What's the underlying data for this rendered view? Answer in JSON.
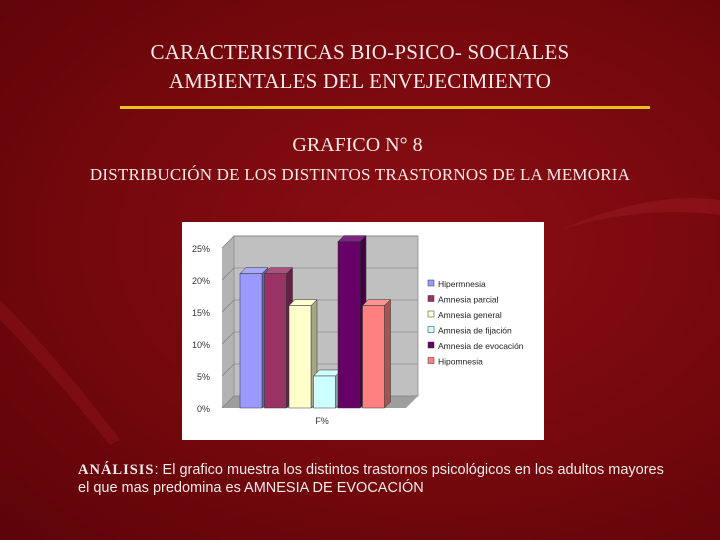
{
  "slide": {
    "title_line1": "CARACTERISTICAS BIO-PSICO- SOCIALES",
    "title_line2": "AMBIENTALES DEL ENVEJECIMIENTO",
    "subtitle": "GRAFICO N° 8",
    "heading": "DISTRIBUCIÓN DE LOS DISTINTOS TRASTORNOS DE LA MEMORIA",
    "analysis_label": "ANÁLISIS",
    "analysis_text": ": El grafico muestra los distintos trastornos psicológicos en los adultos mayores el que mas predomina es AMNESIA DE EVOCACIÓN"
  },
  "colors": {
    "background": "#74080d",
    "rule": "#e6c21a",
    "text": "#f4e9e9"
  },
  "chart_data": {
    "type": "bar",
    "categories": [
      "F%"
    ],
    "series": [
      {
        "name": "Hipermnesia",
        "values": [
          21
        ],
        "color": "#9999ff"
      },
      {
        "name": "Amnesia parcial",
        "values": [
          21
        ],
        "color": "#993366"
      },
      {
        "name": "Amnesia general",
        "values": [
          16
        ],
        "color": "#ffffcc"
      },
      {
        "name": "Amnesia de fijación",
        "values": [
          5
        ],
        "color": "#ccffff"
      },
      {
        "name": "Amnesia de evocación",
        "values": [
          26
        ],
        "color": "#660066"
      },
      {
        "name": "Hipomnesia",
        "values": [
          16
        ],
        "color": "#ff8080"
      }
    ],
    "yticks": [
      "0%",
      "5%",
      "10%",
      "15%",
      "20%",
      "25%"
    ],
    "ylim": [
      0,
      25
    ],
    "legend": "right",
    "three_d": true
  }
}
